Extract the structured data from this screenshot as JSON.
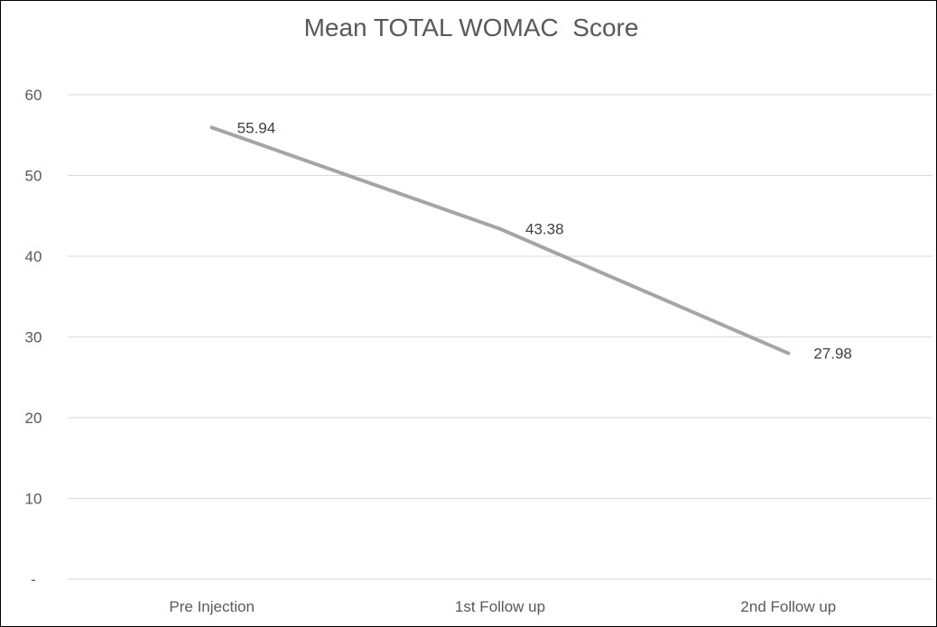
{
  "chart_data": {
    "type": "line",
    "title": "Mean TOTAL WOMAC  Score",
    "categories": [
      "Pre Injection",
      "1st Follow up",
      "2nd Follow up"
    ],
    "series": [
      {
        "values": [
          55.94,
          43.38,
          27.98
        ]
      }
    ],
    "data_labels": [
      "55.94",
      "43.38",
      "27.98"
    ],
    "y_ticks": [
      {
        "value": 60,
        "label": "60"
      },
      {
        "value": 50,
        "label": "50"
      },
      {
        "value": 40,
        "label": "40"
      },
      {
        "value": 30,
        "label": "30"
      },
      {
        "value": 20,
        "label": "20"
      },
      {
        "value": 10,
        "label": "10"
      },
      {
        "value": 0,
        "label": "-"
      }
    ],
    "ylim": [
      0,
      60
    ],
    "grid": true,
    "legend": "none",
    "line_color": "#a5a5a5"
  }
}
